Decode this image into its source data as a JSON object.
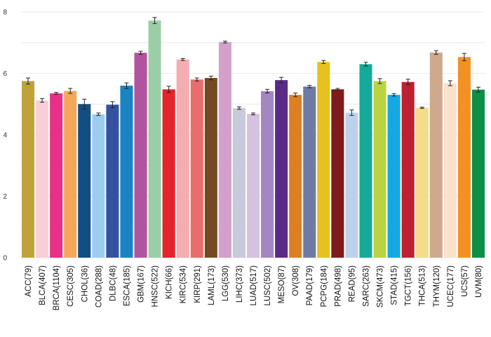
{
  "chart_data": {
    "type": "bar",
    "title": "",
    "xlabel": "",
    "ylabel": "",
    "ylim": [
      0,
      8.1
    ],
    "yticks": [
      0,
      2,
      4,
      6,
      8
    ],
    "grid": true,
    "categories": [
      "ACC(79)",
      "BLCA(407)",
      "BRCA(1104)",
      "CESC(305)",
      "CHOL(36)",
      "COAD(288)",
      "DLBC(48)",
      "ESCA(185)",
      "GBM(167)",
      "HNSC(522)",
      "KICH(66)",
      "KIRC(534)",
      "KIRP(291)",
      "LAML(173)",
      "LGG(530)",
      "LIHC(373)",
      "LUAD(517)",
      "LUSC(502)",
      "MESO(87)",
      "OV(308)",
      "PAAD(179)",
      "PCPG(184)",
      "PRAD(498)",
      "READ(95)",
      "SARC(263)",
      "SKCM(473)",
      "STAD(415)",
      "TGCT(156)",
      "THCA(513)",
      "THYM(120)",
      "UCEC(177)",
      "UCS(57)",
      "UVM(80)"
    ],
    "values": [
      5.75,
      5.12,
      5.35,
      5.43,
      5.0,
      4.67,
      4.98,
      5.6,
      6.67,
      7.72,
      5.48,
      6.45,
      5.8,
      5.85,
      7.02,
      4.87,
      4.68,
      5.42,
      5.78,
      5.3,
      5.57,
      6.37,
      5.48,
      4.72,
      6.3,
      5.75,
      5.3,
      5.72,
      4.88,
      6.68,
      5.68,
      6.53,
      5.47
    ],
    "errors": [
      0.1,
      0.06,
      0.03,
      0.08,
      0.16,
      0.04,
      0.1,
      0.09,
      0.05,
      0.1,
      0.1,
      0.03,
      0.05,
      0.06,
      0.03,
      0.04,
      0.03,
      0.06,
      0.09,
      0.06,
      0.04,
      0.05,
      0.03,
      0.09,
      0.06,
      0.08,
      0.04,
      0.09,
      0.02,
      0.06,
      0.08,
      0.12,
      0.08
    ],
    "colors": [
      "#BFA33A",
      "#F8CFD8",
      "#E8308A",
      "#F4A75B",
      "#114E82",
      "#9CCDEF",
      "#3452A0",
      "#1A84C2",
      "#B2539E",
      "#9ACFA6",
      "#E4232C",
      "#F4AEB1",
      "#E86E6E",
      "#734A24",
      "#D59FCC",
      "#C9C9DC",
      "#D4C2E0",
      "#A386C2",
      "#5A2B86",
      "#DF7F24",
      "#6F7BA6",
      "#E7C21F",
      "#7E1B1C",
      "#BBD2EC",
      "#15A999",
      "#BCD341",
      "#16A8E3",
      "#BD2031",
      "#F5DC8A",
      "#CEA98B",
      "#F8E2CB",
      "#F49124",
      "#0C8F46"
    ]
  }
}
